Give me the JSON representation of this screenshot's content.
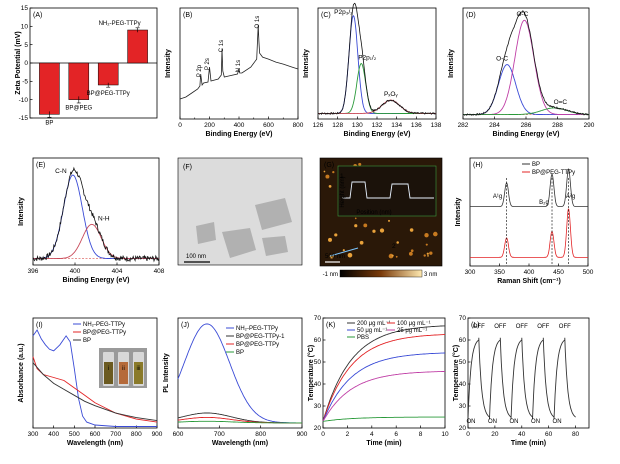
{
  "panels": [
    {
      "id": "A",
      "label": "(A)",
      "ylabel": "Zeta Potential (mV)"
    },
    {
      "id": "B",
      "label": "(B)",
      "xlabel": "Binding Energy (eV)",
      "ylabel": "Intensity"
    },
    {
      "id": "C",
      "label": "(C)",
      "xlabel": "Binding Energy (eV)",
      "ylabel": "Intensity"
    },
    {
      "id": "D",
      "label": "(D)",
      "xlabel": "Binding Energy (eV)",
      "ylabel": "Intensity"
    },
    {
      "id": "E",
      "label": "(E)",
      "xlabel": "Binding Energy (eV)",
      "ylabel": "Intensity"
    },
    {
      "id": "F",
      "label": "(F)",
      "scalebar": "100 nm"
    },
    {
      "id": "G",
      "label": "(G)",
      "scalebar": "500 nm",
      "inset_xlabel": "Position (nm)",
      "inset_ylabel": "Height (nm)",
      "colorbar_min": "-1 nm",
      "colorbar_max": "3 nm",
      "markers": [
        "1",
        "2"
      ]
    },
    {
      "id": "H",
      "label": "(H)",
      "xlabel": "Raman Shift (cm⁻¹)",
      "ylabel": "Intensity"
    },
    {
      "id": "I",
      "label": "(I)",
      "xlabel": "Wavelength (nm)",
      "ylabel": "Absorbance (a.u.)",
      "vials": [
        "i",
        "ii",
        "iii"
      ]
    },
    {
      "id": "J",
      "label": "(J)",
      "xlabel": "Wavelength (nm)",
      "ylabel": "PL Intensity"
    },
    {
      "id": "K",
      "label": "(K)",
      "xlabel": "Time (min)",
      "ylabel": "Temperature (°C)"
    },
    {
      "id": "L",
      "label": "(L)",
      "xlabel": "Time (min)",
      "ylabel": "Temperature (°C)",
      "on_label": "ON",
      "off_label": "OFF"
    }
  ],
  "chart_data": [
    {
      "panel": "A",
      "type": "bar",
      "categories": [
        "BP",
        "BP@PEG",
        "BP@PEG-TTPy",
        "NH₂-PEG-TTPy"
      ],
      "values": [
        -14,
        -10,
        -6,
        9
      ],
      "errors": [
        0.8,
        0.9,
        0.6,
        0.6
      ],
      "ylim": [
        -15,
        15
      ],
      "yticks": [
        -15,
        -10,
        -5,
        0,
        5,
        10,
        15
      ],
      "color": "#e32426"
    },
    {
      "panel": "B",
      "type": "line",
      "xlim": [
        0,
        800
      ],
      "xticks": [
        0,
        100,
        200,
        300,
        400,
        500,
        600,
        700,
        800
      ],
      "x": [
        0,
        40,
        80,
        120,
        135,
        140,
        150,
        160,
        190,
        200,
        210,
        260,
        280,
        285,
        290,
        300,
        330,
        390,
        400,
        405,
        420,
        480,
        520,
        530,
        535,
        540,
        560,
        600,
        650,
        700,
        760,
        800
      ],
      "y": [
        0.2,
        0.22,
        0.26,
        0.3,
        0.33,
        0.45,
        0.34,
        0.36,
        0.37,
        0.52,
        0.38,
        0.4,
        0.44,
        0.7,
        0.48,
        0.42,
        0.43,
        0.45,
        0.5,
        0.46,
        0.46,
        0.52,
        0.6,
        0.94,
        0.78,
        0.66,
        0.62,
        0.6,
        0.57,
        0.55,
        0.52,
        0.5
      ],
      "annotations": [
        "P 2p",
        "P 2s",
        "C 1s",
        "N 1s",
        "O 1s"
      ]
    },
    {
      "panel": "C",
      "type": "line",
      "xlim": [
        126,
        138
      ],
      "xticks": [
        126,
        128,
        130,
        132,
        134,
        136,
        138
      ],
      "series": [
        {
          "label": "P2p₃/₂",
          "center": 129.6,
          "height": 0.88,
          "width": 0.45,
          "color": "#3a4bd6"
        },
        {
          "label": "P2p₁/₂",
          "center": 130.4,
          "height": 0.45,
          "width": 0.45,
          "color": "#2a9a3a"
        },
        {
          "label": "PₓOᵧ",
          "center": 133.4,
          "height": 0.12,
          "width": 0.9,
          "color": "#c84a5a"
        }
      ],
      "baseline": 0.05
    },
    {
      "panel": "D",
      "type": "line",
      "xlim": [
        282,
        290
      ],
      "xticks": [
        282,
        284,
        286,
        288,
        290
      ],
      "series": [
        {
          "label": "O-C",
          "center": 284.8,
          "height": 0.45,
          "width": 0.55,
          "color": "#3a4bd6"
        },
        {
          "label": "O-C",
          "center": 285.9,
          "height": 0.85,
          "width": 0.6,
          "color": "#c03fa6"
        },
        {
          "label": "O=C",
          "center": 287.8,
          "height": 0.06,
          "width": 0.8,
          "color": "#2a9a3a"
        }
      ],
      "baseline": 0.04
    },
    {
      "panel": "E",
      "type": "line",
      "xlim": [
        396,
        408
      ],
      "xticks": [
        396,
        400,
        404,
        408
      ],
      "series": [
        {
          "label": "C-N",
          "center": 399.8,
          "height": 0.78,
          "width": 0.9,
          "color": "#3a4bd6"
        },
        {
          "label": "N-H",
          "center": 401.6,
          "height": 0.32,
          "width": 0.9,
          "color": "#c84a5a"
        }
      ],
      "baseline": 0.06
    },
    {
      "panel": "H",
      "type": "line",
      "xlim": [
        300,
        500
      ],
      "xticks": [
        300,
        350,
        400,
        450,
        500
      ],
      "series": [
        {
          "name": "BP",
          "color": "#333333",
          "offset": 0.55,
          "peaks": [
            [
              362,
              0.22
            ],
            [
              439,
              0.3
            ],
            [
              467,
              0.35
            ]
          ]
        },
        {
          "name": "BP@PEG-TTPy",
          "color": "#e32426",
          "offset": 0.08,
          "peaks": [
            [
              362,
              0.18
            ],
            [
              439,
              0.24
            ],
            [
              467,
              0.45
            ]
          ]
        }
      ],
      "annotations": [
        "A¹g",
        "B₂g",
        "A²g"
      ]
    },
    {
      "panel": "I",
      "type": "line",
      "xlim": [
        300,
        900
      ],
      "xticks": [
        300,
        400,
        500,
        600,
        700,
        800,
        900
      ],
      "series": [
        {
          "name": "NH₂-PEG-TTPy",
          "color": "#3a4bd6",
          "x": [
            300,
            320,
            340,
            360,
            380,
            400,
            430,
            460,
            480,
            500,
            520,
            540,
            560,
            600,
            700,
            800,
            900
          ],
          "y": [
            0.62,
            0.66,
            0.6,
            0.56,
            0.53,
            0.52,
            0.56,
            0.62,
            0.58,
            0.4,
            0.2,
            0.08,
            0.04,
            0.02,
            0.01,
            0.01,
            0.01
          ]
        },
        {
          "name": "BP@PEG-TTPy",
          "color": "#e32426",
          "x": [
            300,
            320,
            350,
            400,
            450,
            500,
            550,
            600,
            700,
            800,
            900
          ],
          "y": [
            0.48,
            0.4,
            0.36,
            0.34,
            0.32,
            0.27,
            0.22,
            0.17,
            0.1,
            0.06,
            0.04
          ]
        },
        {
          "name": "BP",
          "color": "#333333",
          "x": [
            300,
            350,
            400,
            450,
            500,
            550,
            600,
            700,
            800,
            900
          ],
          "y": [
            0.44,
            0.36,
            0.3,
            0.26,
            0.22,
            0.18,
            0.15,
            0.1,
            0.07,
            0.05
          ]
        }
      ]
    },
    {
      "panel": "J",
      "type": "line",
      "xlim": [
        600,
        900
      ],
      "xticks": [
        600,
        700,
        800,
        900
      ],
      "series": [
        {
          "name": "NH₂-PEG-TTPy",
          "color": "#3a4bd6",
          "peak": 670,
          "height": 0.9,
          "width": 55
        },
        {
          "name": "BP@PEG-TTPy-1",
          "color": "#333333",
          "peak": 670,
          "height": 0.09,
          "width": 60
        },
        {
          "name": "BP@PEG-TTPy",
          "color": "#e32426",
          "peak": 670,
          "height": 0.05,
          "width": 60
        },
        {
          "name": "BP",
          "color": "#2a9a3a",
          "peak": 670,
          "height": 0.015,
          "width": 60
        }
      ]
    },
    {
      "panel": "K",
      "type": "line",
      "xlim": [
        0,
        10
      ],
      "ylim": [
        20,
        70
      ],
      "xticks": [
        0,
        2,
        4,
        6,
        8,
        10
      ],
      "yticks": [
        20,
        30,
        40,
        50,
        60,
        70
      ],
      "series": [
        {
          "name": "200 μg mL⁻¹",
          "color": "#333333",
          "plateau": 67.0
        },
        {
          "name": "100 μg mL⁻¹",
          "color": "#e32426",
          "plateau": 63.0
        },
        {
          "name": "50 μg mL⁻¹",
          "color": "#3a4bd6",
          "plateau": 54.5
        },
        {
          "name": "25 μg mL⁻¹",
          "color": "#c03fa6",
          "plateau": 46.0
        },
        {
          "name": "PBS",
          "color": "#2a9a3a",
          "plateau": 25.0
        }
      ],
      "start": 23
    },
    {
      "panel": "L",
      "type": "line",
      "xlim": [
        0,
        90
      ],
      "ylim": [
        20,
        70
      ],
      "xticks": [
        0,
        20,
        40,
        60,
        80
      ],
      "yticks": [
        20,
        30,
        40,
        50,
        60,
        70
      ],
      "series": [
        {
          "name": "cycles",
          "color": "#333333",
          "cycles": 5,
          "period": 16,
          "min": 24,
          "max": 61
        }
      ]
    }
  ]
}
